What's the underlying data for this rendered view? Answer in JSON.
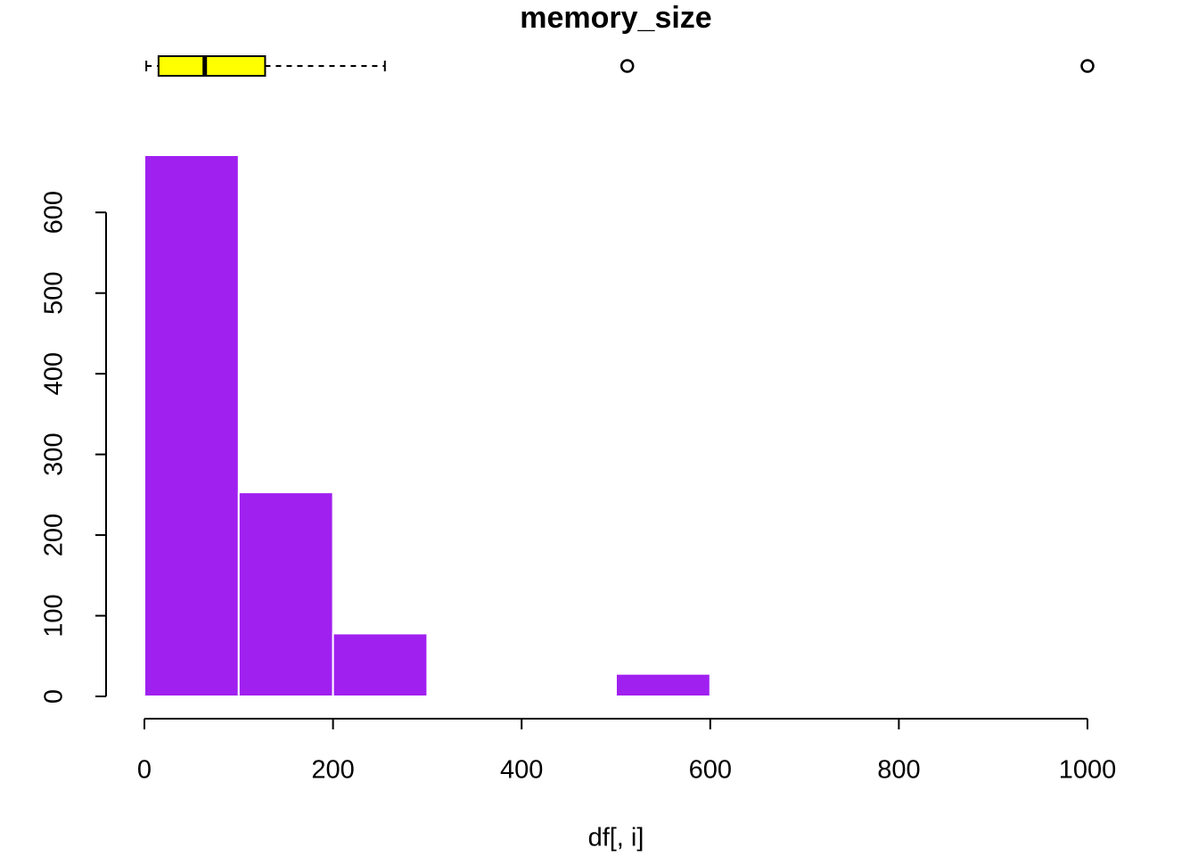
{
  "chart_data": {
    "type": "histogram",
    "title": "memory_size",
    "x_label": "df[, i]",
    "bins": [
      0,
      100,
      200,
      300,
      400,
      500,
      600,
      700,
      800,
      900,
      1000
    ],
    "counts": [
      671,
      253,
      78,
      0,
      0,
      28,
      0,
      0,
      0,
      1
    ],
    "color": "#a020f0",
    "xlim": [
      0,
      1000
    ],
    "xticks": [
      0,
      200,
      400,
      600,
      800,
      1000
    ],
    "ylim": [
      0,
      671
    ],
    "yticks": [
      0,
      100,
      200,
      300,
      400,
      500,
      600
    ],
    "boxplot": {
      "color": "#ffff00",
      "whisker_low": 2,
      "q1": 15,
      "median": 64,
      "q3": 128,
      "whisker_high": 255,
      "outliers": [
        512,
        1000
      ]
    }
  }
}
